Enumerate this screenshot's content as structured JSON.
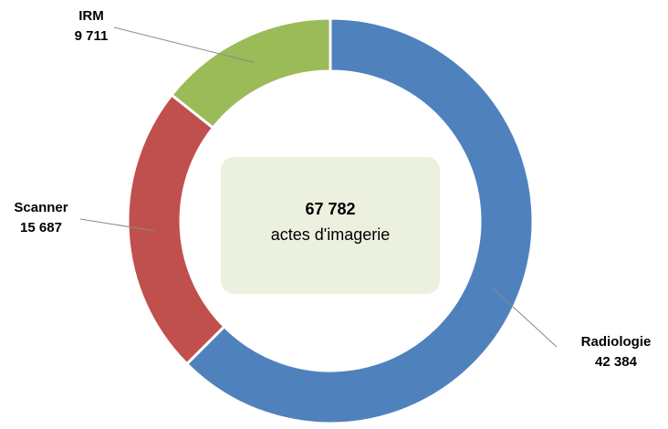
{
  "chart_data": {
    "type": "donut",
    "categories": [
      "Radiologie",
      "Scanner",
      "IRM"
    ],
    "values": [
      42384,
      15687,
      9711
    ],
    "value_labels": [
      "42 384",
      "15 687",
      "9 711"
    ],
    "colors": [
      "#4f81bd",
      "#c0504d",
      "#9bbb59"
    ],
    "center_text": [
      "67 782",
      "actes d'imagerie"
    ]
  }
}
